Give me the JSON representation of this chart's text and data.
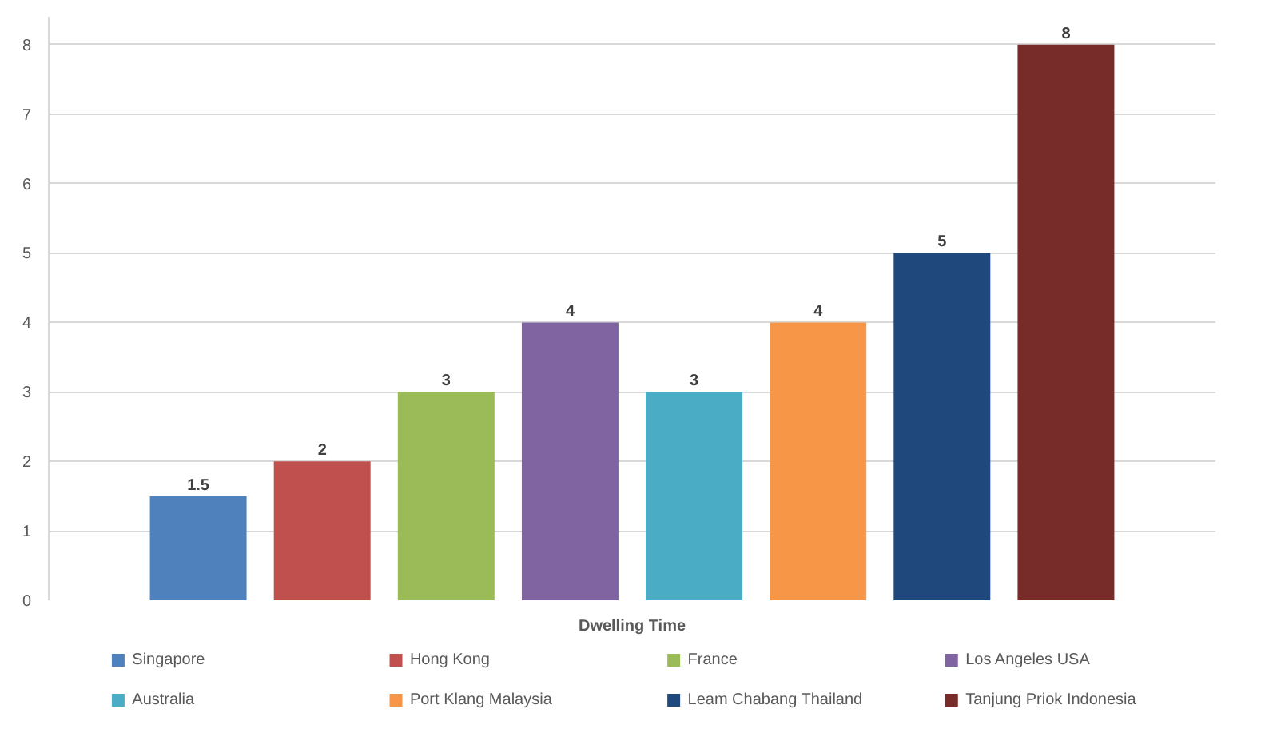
{
  "chart_data": {
    "type": "bar",
    "categories": [
      "Dwelling Time"
    ],
    "series": [
      {
        "name": "Singapore",
        "color": "#4f81bd",
        "values": [
          1.5
        ]
      },
      {
        "name": "Hong Kong",
        "color": "#c0504d",
        "values": [
          2
        ]
      },
      {
        "name": "France",
        "color": "#9bbb59",
        "values": [
          3
        ]
      },
      {
        "name": "Los Angeles USA",
        "color": "#8064a2",
        "values": [
          4
        ]
      },
      {
        "name": "Australia",
        "color": "#4bacc6",
        "values": [
          3
        ]
      },
      {
        "name": "Port Klang Malaysia",
        "color": "#f79646",
        "values": [
          4
        ]
      },
      {
        "name": "Leam Chabang Thailand",
        "color": "#1f497d",
        "values": [
          5
        ]
      },
      {
        "name": "Tanjung Priok Indonesia",
        "color": "#772c2a",
        "values": [
          8
        ]
      }
    ],
    "ylim": [
      0,
      8.4
    ],
    "yticks": [
      0,
      1,
      2,
      3,
      4,
      5,
      6,
      7,
      8
    ],
    "grid": "y",
    "legend": "bottom",
    "data_labels": true
  }
}
